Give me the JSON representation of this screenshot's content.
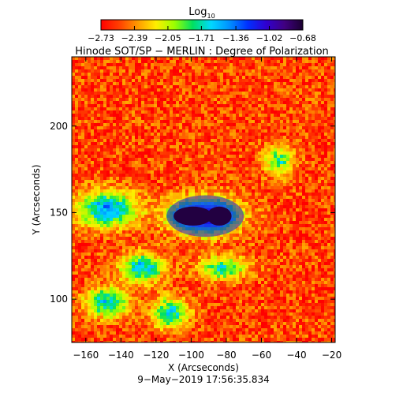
{
  "chart_data": {
    "type": "heatmap",
    "title": "Hinode SOT/SP − MERLIN : Degree of Polarization",
    "xlabel": "X (Arcseconds)",
    "ylabel": "Y (Arcseconds)",
    "xlim": [
      -168,
      -18
    ],
    "ylim": [
      75,
      240
    ],
    "x_ticks": [
      -160,
      -140,
      -120,
      -100,
      -80,
      -60,
      -40,
      -20
    ],
    "x_tick_labels": [
      "−160",
      "−140",
      "−120",
      "−100",
      "−80",
      "−60",
      "−40",
      "−20"
    ],
    "y_ticks": [
      100,
      150,
      200
    ],
    "y_tick_labels": [
      "100",
      "150",
      "200"
    ],
    "colorbar": {
      "label_main": "Log",
      "label_sub": "10",
      "range": [
        -2.73,
        -0.68
      ],
      "ticks": [
        -2.73,
        -2.39,
        -2.05,
        -1.71,
        -1.36,
        -1.02,
        -0.68
      ],
      "tick_labels": [
        "−2.73",
        "−2.39",
        "−2.05",
        "−1.71",
        "−1.36",
        "−1.02",
        "−0.68"
      ],
      "colors": [
        "#ff0000",
        "#ff4000",
        "#ff9900",
        "#ffee00",
        "#9bff00",
        "#00e060",
        "#00d8ff",
        "#0090ff",
        "#0030ff",
        "#3000d0",
        "#400080",
        "#1a0030"
      ]
    },
    "features": [
      {
        "type": "sunspot_umbra",
        "center": [
          -99,
          148
        ],
        "radius": [
          11,
          5.5
        ],
        "value": -0.72
      },
      {
        "type": "sunspot_umbra",
        "center": [
          -84,
          148
        ],
        "radius": [
          7,
          5.5
        ],
        "value": -0.72
      },
      {
        "type": "penumbra",
        "center": [
          -92,
          148
        ],
        "radius": [
          22,
          12
        ],
        "value": -1.1
      },
      {
        "type": "plage",
        "center": [
          -148,
          152
        ],
        "radius": [
          20,
          12
        ],
        "value": -1.45
      },
      {
        "type": "plage",
        "center": [
          -128,
          118
        ],
        "radius": [
          14,
          10
        ],
        "value": -1.55
      },
      {
        "type": "plage",
        "center": [
          -148,
          98
        ],
        "radius": [
          14,
          10
        ],
        "value": -1.6
      },
      {
        "type": "plage",
        "center": [
          -112,
          92
        ],
        "radius": [
          12,
          10
        ],
        "value": -1.6
      },
      {
        "type": "plage",
        "center": [
          -82,
          118
        ],
        "radius": [
          16,
          8
        ],
        "value": -1.75
      },
      {
        "type": "network",
        "center": [
          -50,
          180
        ],
        "radius": [
          10,
          10
        ],
        "value": -1.8
      }
    ],
    "timestamp": "9−May−2019 17:56:35.834"
  }
}
